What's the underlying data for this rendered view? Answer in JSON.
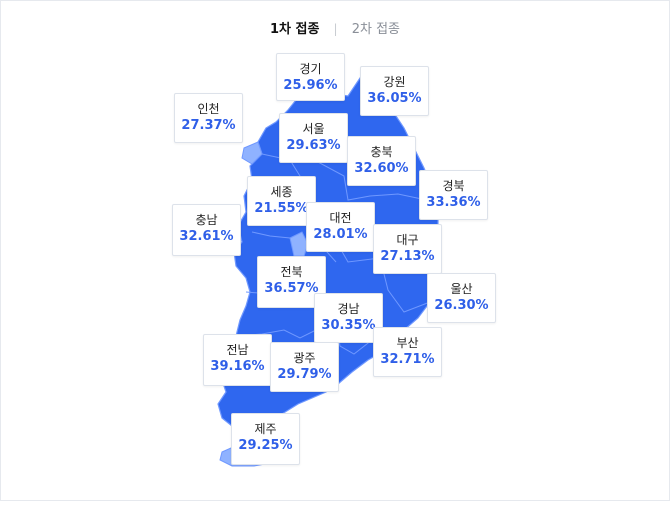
{
  "tabs": [
    {
      "label": "1차 접종",
      "active": true
    },
    {
      "label": "2차 접종",
      "active": false
    }
  ],
  "tab_separator": "|",
  "colors": {
    "map_fill": "#2f67ef",
    "map_border": "#6f98ff",
    "light_region": "#8fb2ff",
    "percent_text": "#2f5fe8"
  },
  "regions": [
    {
      "name": "경기",
      "rate": "25.96%"
    },
    {
      "name": "강원",
      "rate": "36.05%"
    },
    {
      "name": "인천",
      "rate": "27.37%"
    },
    {
      "name": "서울",
      "rate": "29.63%"
    },
    {
      "name": "충북",
      "rate": "32.60%"
    },
    {
      "name": "경북",
      "rate": "33.36%"
    },
    {
      "name": "세종",
      "rate": "21.55%"
    },
    {
      "name": "충남",
      "rate": "32.61%"
    },
    {
      "name": "대전",
      "rate": "28.01%"
    },
    {
      "name": "대구",
      "rate": "27.13%"
    },
    {
      "name": "전북",
      "rate": "36.57%"
    },
    {
      "name": "울산",
      "rate": "26.30%"
    },
    {
      "name": "경남",
      "rate": "30.35%"
    },
    {
      "name": "부산",
      "rate": "32.71%"
    },
    {
      "name": "전남",
      "rate": "39.16%"
    },
    {
      "name": "광주",
      "rate": "29.79%"
    },
    {
      "name": "제주",
      "rate": "29.25%"
    }
  ]
}
